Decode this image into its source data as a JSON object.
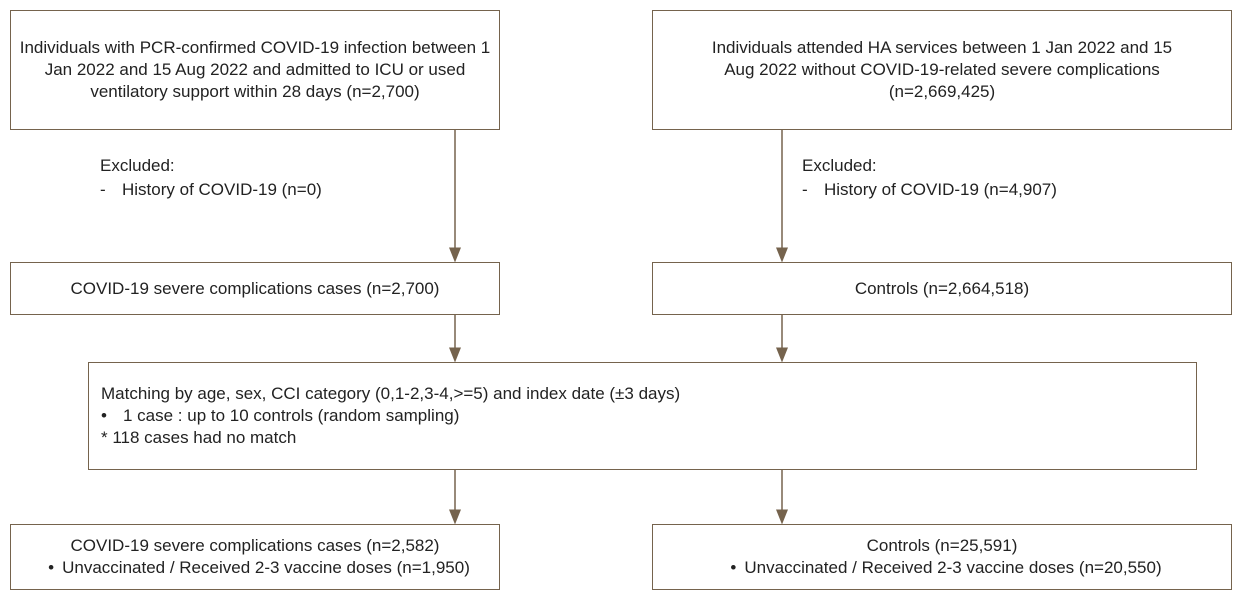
{
  "nodes": [
    {
      "lines": [
        "Individuals with PCR-confirmed COVID-19 infection between 1",
        "Jan 2022 and 15 Aug 2022 and admitted to ICU or used",
        "ventilatory support within 28 days (n=2,700)"
      ]
    },
    {
      "lines": [
        "Individuals attended HA services between 1 Jan 2022 and 15",
        "Aug 2022 without COVID-19-related severe complications",
        "(n=2,669,425)"
      ]
    },
    {
      "lines": [
        "COVID-19 severe complications cases (n=2,700)"
      ]
    },
    {
      "lines": [
        "Controls (n=2,664,518)"
      ]
    },
    {
      "lines": [
        "Matching by age, sex, CCI category (0,1-2,3-4,>=5) and index date (±3 days)",
        "1 case : up to 10 controls (random sampling)",
        "* 118 cases had no match"
      ]
    },
    {
      "lines": [
        "COVID-19 severe complications cases (n=2,582)",
        "Unvaccinated / Received 2-3 vaccine doses (n=1,950)"
      ]
    },
    {
      "lines": [
        "Controls (n=25,591)",
        "Unvaccinated / Received 2-3 vaccine doses (n=20,550)"
      ]
    }
  ],
  "exclusions": [
    {
      "title": "Excluded:",
      "item": "History of COVID-19 (n=0)"
    },
    {
      "title": "Excluded:",
      "item": "History of COVID-19 (n=4,907)"
    }
  ]
}
